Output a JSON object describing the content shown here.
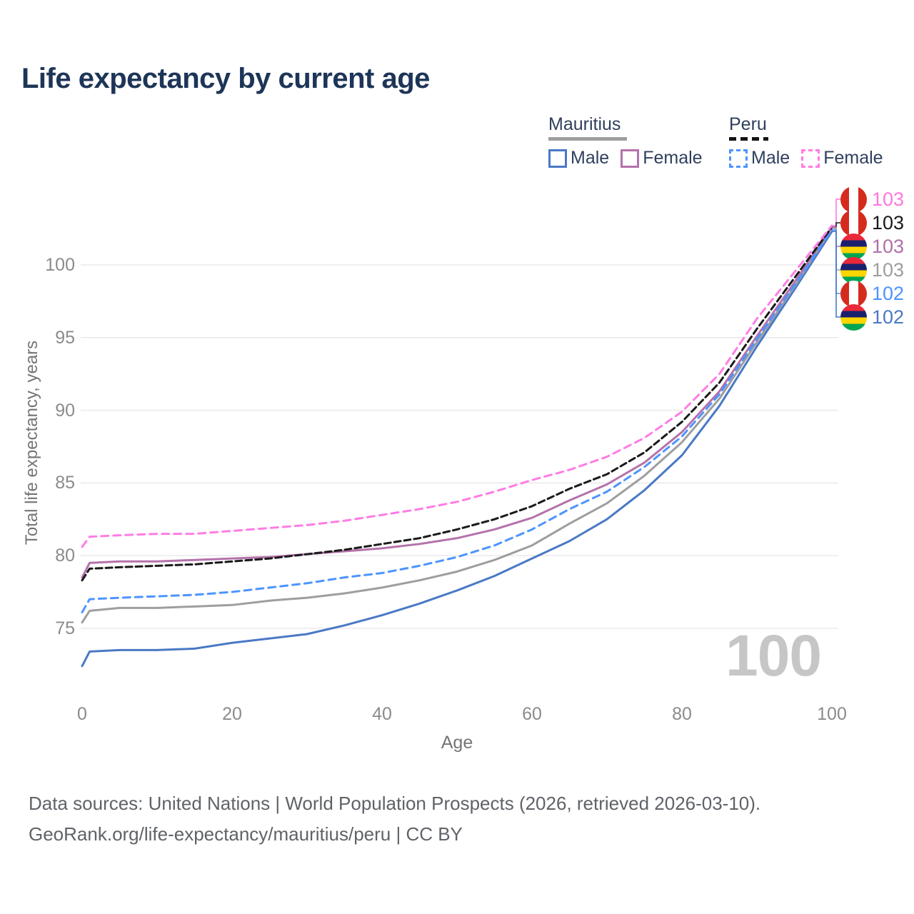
{
  "title": "Life expectancy by current age",
  "legend": {
    "groups": [
      {
        "label": "Mauritius",
        "line_style": "solid",
        "underline_color": "#9e9e9e",
        "items": [
          {
            "label": "Male",
            "color": "#4a79c5",
            "dashed": false
          },
          {
            "label": "Female",
            "color": "#b472ab",
            "dashed": false
          }
        ]
      },
      {
        "label": "Peru",
        "line_style": "dashed",
        "underline_color": "#141414",
        "items": [
          {
            "label": "Male",
            "color": "#4d94ff",
            "dashed": true
          },
          {
            "label": "Female",
            "color": "#ff7ce4",
            "dashed": true
          }
        ]
      }
    ]
  },
  "chart_data": {
    "type": "line",
    "title": "Life expectancy by current age",
    "xlabel": "Age",
    "ylabel": "Total life expectancy, years",
    "xlim": [
      0,
      100
    ],
    "ylim": [
      71.5,
      104
    ],
    "x_ticks": [
      0,
      20,
      40,
      60,
      80,
      100
    ],
    "y_ticks": [
      75,
      80,
      85,
      90,
      95,
      100
    ],
    "grid": "horizontal",
    "legend_position": "top-right",
    "watermark": "100",
    "x": [
      0,
      1,
      5,
      10,
      15,
      20,
      25,
      30,
      35,
      40,
      45,
      50,
      55,
      60,
      65,
      70,
      75,
      80,
      85,
      90,
      95,
      100
    ],
    "series": [
      {
        "name": "Mauritius Male",
        "country": "Mauritius",
        "sex": "Male",
        "color": "#4a79c5",
        "dash": null,
        "values": [
          72.4,
          73.4,
          73.5,
          73.5,
          73.6,
          74.0,
          74.3,
          74.6,
          75.2,
          75.9,
          76.7,
          77.6,
          78.6,
          79.8,
          81.0,
          82.5,
          84.5,
          86.9,
          90.3,
          94.4,
          98.3,
          102.3
        ],
        "end_label": "102"
      },
      {
        "name": "Mauritius (both sexes)",
        "country": "Mauritius",
        "sex": "Total",
        "color": "#9e9e9e",
        "dash": null,
        "values": [
          75.4,
          76.2,
          76.4,
          76.4,
          76.5,
          76.6,
          76.9,
          77.1,
          77.4,
          77.8,
          78.3,
          78.9,
          79.7,
          80.7,
          82.2,
          83.6,
          85.5,
          87.8,
          90.8,
          94.7,
          98.5,
          102.5
        ],
        "end_label": "103"
      },
      {
        "name": "Mauritius Female",
        "country": "Mauritius",
        "sex": "Female",
        "color": "#b472ab",
        "dash": null,
        "values": [
          78.5,
          79.5,
          79.6,
          79.6,
          79.7,
          79.8,
          79.9,
          80.1,
          80.3,
          80.5,
          80.8,
          81.2,
          81.8,
          82.6,
          83.8,
          84.9,
          86.4,
          88.5,
          91.3,
          95.1,
          98.8,
          102.6
        ],
        "end_label": "103"
      },
      {
        "name": "Peru Male",
        "country": "Peru",
        "sex": "Male",
        "color": "#4d94ff",
        "dash": "10 7",
        "values": [
          76.1,
          77.0,
          77.1,
          77.2,
          77.3,
          77.5,
          77.8,
          78.1,
          78.5,
          78.8,
          79.3,
          79.9,
          80.7,
          81.8,
          83.2,
          84.4,
          86.1,
          88.2,
          91.1,
          94.9,
          98.6,
          102.4
        ],
        "end_label": "102"
      },
      {
        "name": "Peru (both sexes)",
        "country": "Peru",
        "sex": "Total",
        "color": "#1a1a1a",
        "dash": "9 5",
        "values": [
          78.3,
          79.1,
          79.2,
          79.3,
          79.4,
          79.6,
          79.8,
          80.1,
          80.4,
          80.8,
          81.2,
          81.8,
          82.5,
          83.4,
          84.6,
          85.6,
          87.1,
          89.2,
          91.9,
          95.6,
          99.1,
          102.6
        ],
        "end_label": "103"
      },
      {
        "name": "Peru Female",
        "country": "Peru",
        "sex": "Female",
        "color": "#ff7ce4",
        "dash": "10 7",
        "values": [
          80.6,
          81.3,
          81.4,
          81.5,
          81.5,
          81.7,
          81.9,
          82.1,
          82.4,
          82.8,
          83.2,
          83.7,
          84.4,
          85.2,
          85.9,
          86.8,
          88.1,
          89.9,
          92.5,
          96.3,
          99.5,
          102.7
        ],
        "end_label": "103"
      }
    ]
  },
  "end_labels": [
    {
      "series_index": 5,
      "flag": "peru",
      "value": "103",
      "color": "#ff77dd"
    },
    {
      "series_index": 4,
      "flag": "peru",
      "value": "103",
      "color": "#1a1a1a"
    },
    {
      "series_index": 2,
      "flag": "mauritius",
      "value": "103",
      "color": "#b06fa8"
    },
    {
      "series_index": 1,
      "flag": "mauritius",
      "value": "103",
      "color": "#9e9e9e"
    },
    {
      "series_index": 3,
      "flag": "peru",
      "value": "102",
      "color": "#4d94ff"
    },
    {
      "series_index": 0,
      "flag": "mauritius",
      "value": "102",
      "color": "#4a79c5"
    }
  ],
  "footer": {
    "line1": "Data sources: United Nations | World Population Prospects (2026, retrieved 2026-03-10).",
    "line2": "GeoRank.org/life-expectancy/mauritius/peru | CC BY"
  }
}
